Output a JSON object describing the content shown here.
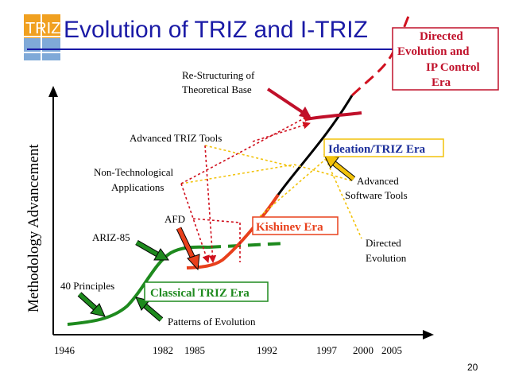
{
  "slide": {
    "logo_text": "TRIZ",
    "title": "Evolution of TRIZ and I-TRIZ",
    "page_number": "20",
    "y_axis_label": "Methodology Advancement",
    "x_ticks": [
      "1946",
      "1982",
      "1985",
      "1992",
      "1997",
      "2000",
      "2005"
    ]
  },
  "eras": {
    "classical": "Classical TRIZ Era",
    "kishinev": "Kishinev Era",
    "ideation": "Ideation/TRIZ Era",
    "directed_line1": "Directed",
    "directed_line2": "Evolution and",
    "directed_line3": "IP Control",
    "directed_line4": "Era"
  },
  "annotations": {
    "restructuring_line1": "Re-Structuring of",
    "restructuring_line2": "Theoretical Base",
    "advanced_triz_tools": "Advanced TRIZ Tools",
    "non_tech_line1": "Non-Technological",
    "non_tech_line2": "Applications",
    "afd": "AFD",
    "ariz85": "ARIZ-85",
    "principles40": "40 Principles",
    "patterns": "Patterns of Evolution",
    "adv_sw_line1": "Advanced",
    "adv_sw_line2": "Software Tools",
    "directed_evo_line1": "Directed",
    "directed_evo_line2": "Evolution"
  },
  "colors": {
    "title_blue": "#1a1aa6",
    "green": "#1e8a1e",
    "red": "#e8401c",
    "dark_red": "#c0102a",
    "black": "#000000",
    "ideation_blue": "#1a2d9a",
    "yellow": "#f2c20a",
    "logo_orange": "#f0a020"
  }
}
